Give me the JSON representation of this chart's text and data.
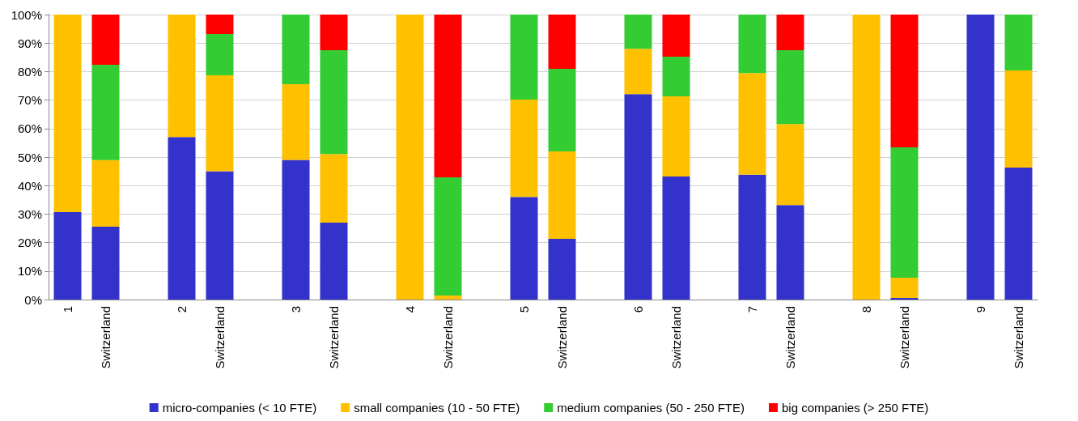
{
  "chart_data": {
    "type": "bar",
    "stacked": true,
    "categories": [
      "1",
      "Switzerland",
      null,
      "2",
      "Switzerland",
      null,
      "3",
      "Switzerland",
      null,
      "4",
      "Switzerland",
      null,
      "5",
      "Switzerland",
      null,
      "6",
      "Switzerland",
      null,
      "7",
      "Switzerland",
      null,
      "8",
      "Switzerland",
      null,
      "9",
      "Switzerland"
    ],
    "series": [
      {
        "name": "micro-companies (< 10 FTE)",
        "color": "#3333cc",
        "values": [
          30.7,
          25.6,
          null,
          57,
          45,
          null,
          49,
          27,
          null,
          0,
          0,
          null,
          36,
          21.3,
          null,
          72.1,
          43.2,
          null,
          43.8,
          33.2,
          null,
          0,
          0.6,
          null,
          100,
          46.3
        ]
      },
      {
        "name": "small companies (10 - 50 FTE)",
        "color": "#ffc000",
        "values": [
          69.3,
          23.3,
          null,
          43,
          33.7,
          null,
          26.6,
          24.1,
          null,
          100,
          1.4,
          null,
          34.2,
          30.7,
          null,
          15.9,
          28.1,
          null,
          35.7,
          28.4,
          null,
          100,
          7.1,
          null,
          0,
          34.1
        ]
      },
      {
        "name": "medium companies (50 - 250 FTE)",
        "color": "#33cc33",
        "values": [
          0,
          33.5,
          null,
          0,
          14.5,
          null,
          24.4,
          36.4,
          null,
          0,
          41.5,
          null,
          29.8,
          29,
          null,
          12,
          13.9,
          null,
          20.5,
          25.9,
          null,
          0,
          45.7,
          null,
          0,
          19.6
        ]
      },
      {
        "name": "big companies (> 250 FTE)",
        "color": "#ff0000",
        "values": [
          0,
          17.6,
          null,
          0,
          6.8,
          null,
          0,
          12.5,
          null,
          0,
          57.1,
          null,
          0,
          19,
          null,
          0,
          14.8,
          null,
          0,
          12.5,
          null,
          0,
          46.6,
          null,
          0,
          0
        ]
      }
    ],
    "ylim": [
      0,
      100
    ],
    "yticks": [
      {
        "value": 0,
        "label": "0%"
      },
      {
        "value": 10,
        "label": "10%"
      },
      {
        "value": 20,
        "label": "20%"
      },
      {
        "value": 30,
        "label": "30%"
      },
      {
        "value": 40,
        "label": "40%"
      },
      {
        "value": 50,
        "label": "50%"
      },
      {
        "value": 60,
        "label": "60%"
      },
      {
        "value": 70,
        "label": "70%"
      },
      {
        "value": 80,
        "label": "80%"
      },
      {
        "value": 90,
        "label": "90%"
      },
      {
        "value": 100,
        "label": "100%"
      }
    ],
    "grid": "y",
    "legend": "bottom"
  }
}
